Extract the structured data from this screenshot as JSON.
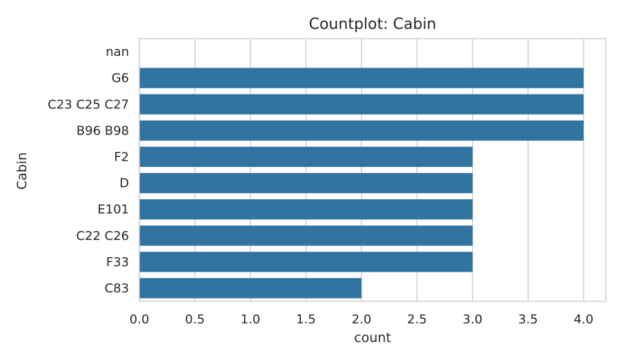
{
  "chart_data": {
    "type": "bar",
    "orientation": "horizontal",
    "title": "Countplot: Cabin",
    "xlabel": "count",
    "ylabel": "Cabin",
    "categories": [
      "nan",
      "G6",
      "C23 C25 C27",
      "B96 B98",
      "F2",
      "D",
      "E101",
      "C22 C26",
      "F33",
      "C83"
    ],
    "values": [
      0,
      4,
      4,
      4,
      3,
      3,
      3,
      3,
      3,
      2
    ],
    "xlim": [
      0,
      4.2
    ],
    "xticks": [
      "0.0",
      "0.5",
      "1.0",
      "1.5",
      "2.0",
      "2.5",
      "3.0",
      "3.5",
      "4.0"
    ],
    "grid": "vertical",
    "bar_color": "#3274a1"
  }
}
